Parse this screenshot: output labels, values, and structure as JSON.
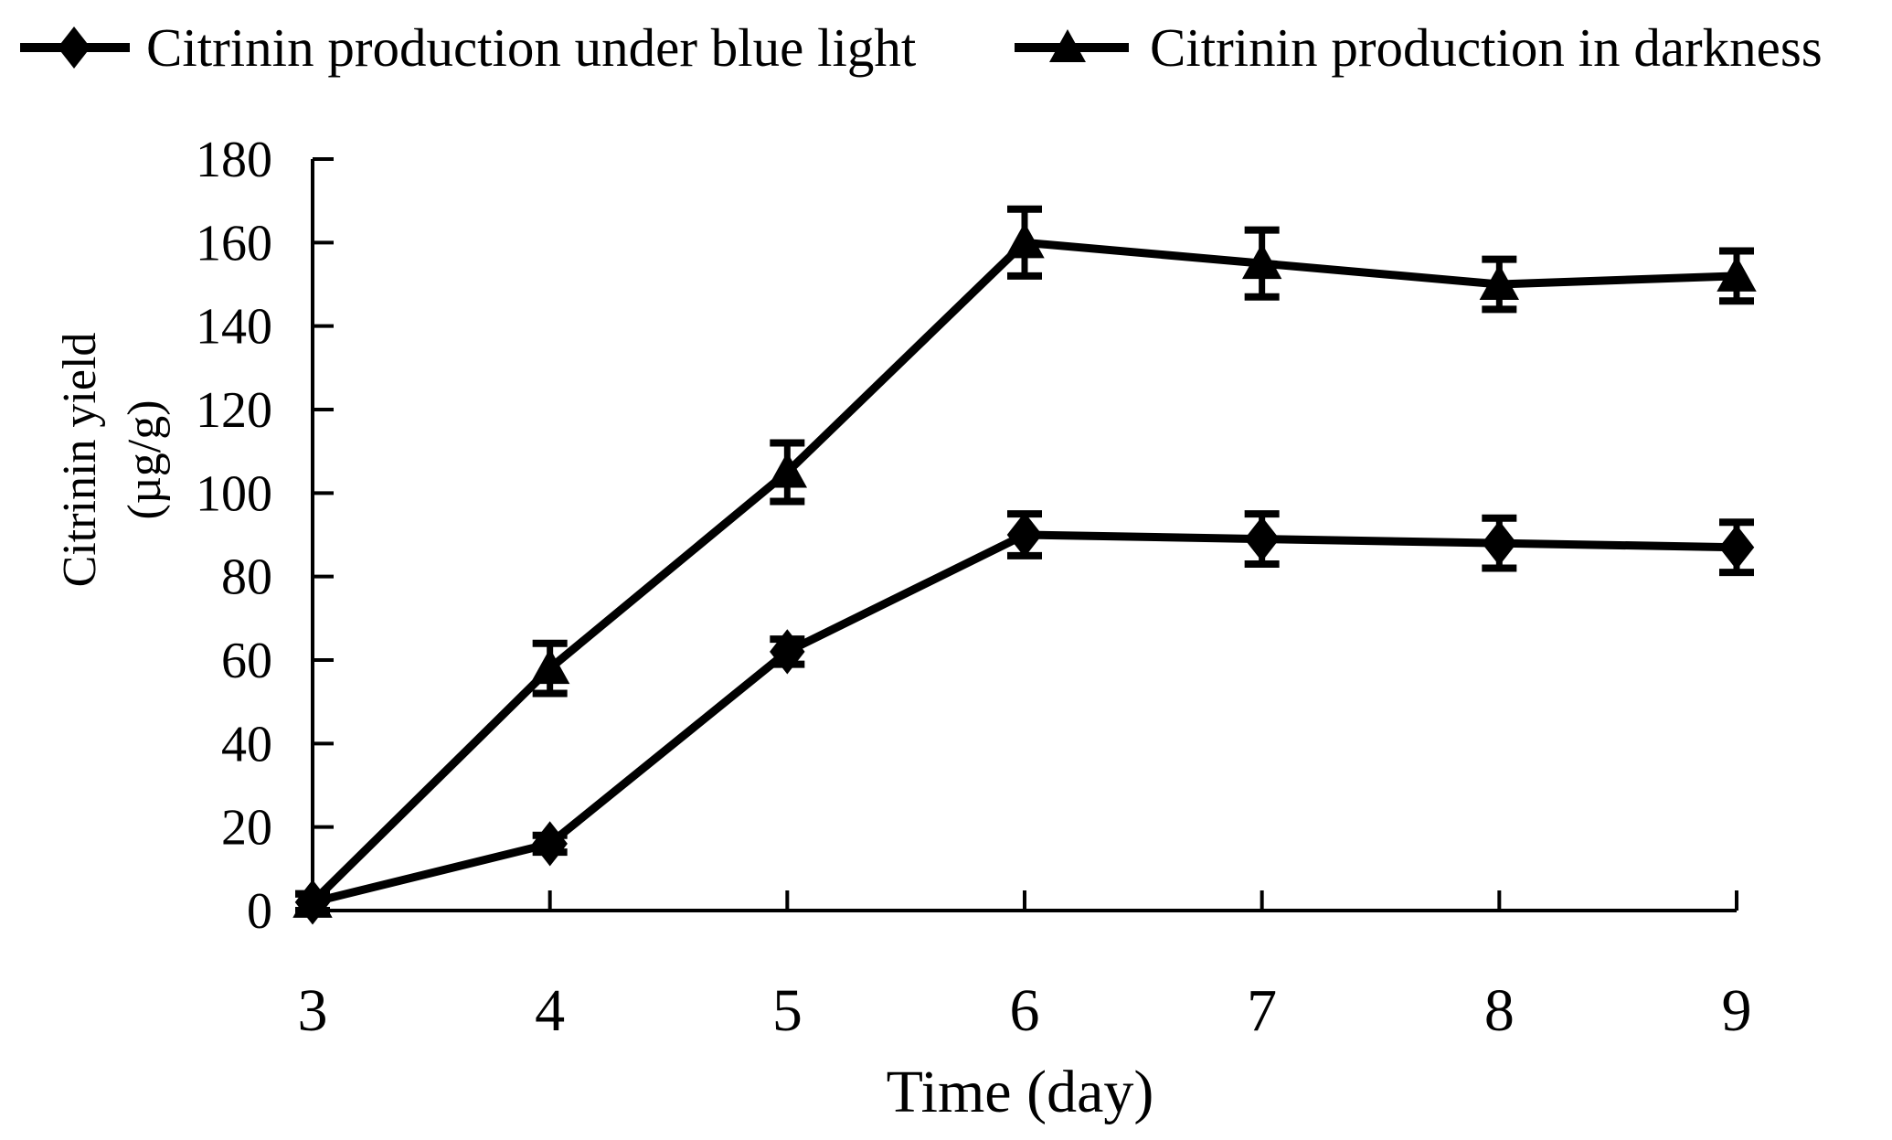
{
  "figure": {
    "background_color": "#ffffff",
    "ink_color": "#000000"
  },
  "legend": {
    "position": "top",
    "items": [
      {
        "label": "Citrinin production under blue light",
        "marker": "diamond"
      },
      {
        "label": "Citrinin production in darkness",
        "marker": "triangle"
      }
    ]
  },
  "chart_data": {
    "type": "line",
    "title": "",
    "x": [
      3,
      4,
      5,
      6,
      7,
      8,
      9
    ],
    "xlim": [
      3,
      9
    ],
    "xticks": [
      3,
      4,
      5,
      6,
      7,
      8,
      9
    ],
    "xlabel": "Time (day)",
    "ylabel_lines": [
      "Citrinin yield",
      "(µg/g)"
    ],
    "ylim": [
      0,
      180
    ],
    "yticks": [
      0,
      20,
      40,
      60,
      80,
      100,
      120,
      140,
      160,
      180
    ],
    "grid": false,
    "legend_position": "top",
    "series": [
      {
        "name": "Citrinin production under blue light",
        "marker": "diamond",
        "color": "#000000",
        "values": [
          2,
          16,
          62,
          90,
          89,
          88,
          87
        ],
        "error_bars": [
          2,
          2,
          3,
          5,
          6,
          6,
          6
        ]
      },
      {
        "name": "Citrinin production in darkness",
        "marker": "triangle",
        "color": "#000000",
        "values": [
          2,
          58,
          105,
          160,
          155,
          150,
          152
        ],
        "error_bars": [
          2,
          6,
          7,
          8,
          8,
          6,
          6
        ]
      }
    ]
  }
}
